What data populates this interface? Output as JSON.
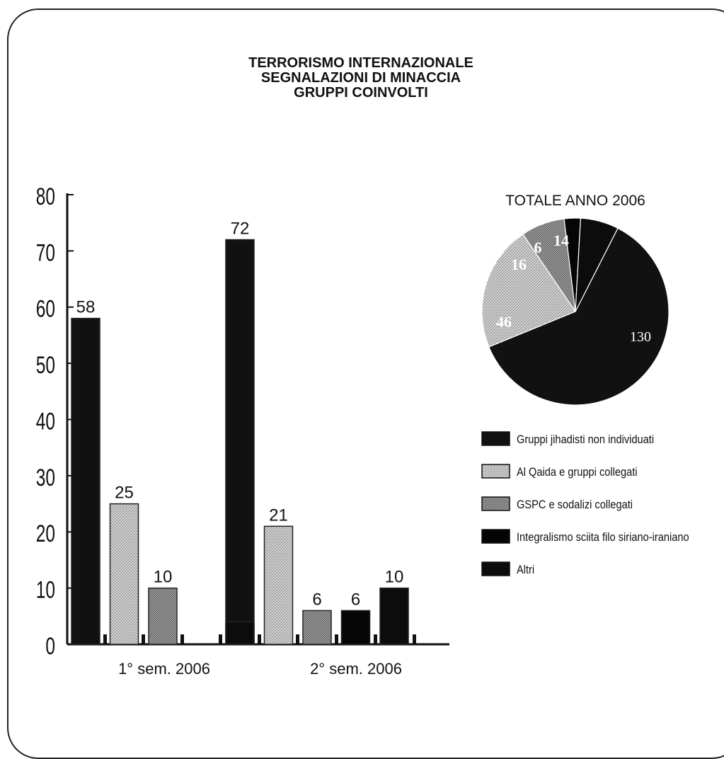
{
  "title_lines": [
    "TERRORISMO INTERNAZIONALE",
    "SEGNALAZIONI DI MINACCIA",
    "GRUPPI COINVOLTI"
  ],
  "colors": {
    "jihadisti": "#111111",
    "alqaida": "#c4c4c4",
    "gspc": "#8e8e8e",
    "sciita": "#050505",
    "altri": "#0c0c0c",
    "axis": "#111111",
    "slice_label_light": "#ffffff",
    "slice_label_dark": "#ffffff"
  },
  "chart_data": [
    {
      "type": "bar",
      "categories": [
        "1° sem. 2006",
        "2° sem. 2006"
      ],
      "series": [
        {
          "name": "Gruppi jihadisti  non individuati",
          "key": "jihadisti",
          "values": [
            58,
            72
          ]
        },
        {
          "name": "Al Qaida e gruppi collegati",
          "key": "alqaida",
          "values": [
            25,
            21
          ]
        },
        {
          "name": "GSPC e sodalizi collegati",
          "key": "gspc",
          "values": [
            10,
            6
          ]
        },
        {
          "name": "Integralismo sciita filo siriano-iraniano",
          "key": "sciita",
          "values": [
            0,
            6
          ]
        },
        {
          "name": "Altri",
          "key": "altri",
          "values": [
            4,
            10
          ]
        }
      ],
      "ylim": [
        0,
        80
      ],
      "yticks": [
        "0",
        "10",
        "20",
        "30",
        "40",
        "50",
        "60",
        "70",
        "80"
      ],
      "grid": false
    },
    {
      "type": "pie",
      "title": "TOTALE ANNO 2006",
      "slices": [
        {
          "label": "130",
          "key": "jihadisti",
          "value": 130
        },
        {
          "label": "46",
          "key": "alqaida",
          "value": 46
        },
        {
          "label": "16",
          "key": "gspc",
          "value": 16
        },
        {
          "label": "6",
          "key": "sciita",
          "value": 6
        },
        {
          "label": "14",
          "key": "altri",
          "value": 14
        }
      ]
    }
  ],
  "legend": {
    "placement": "right",
    "items": [
      {
        "label": "Gruppi jihadisti  non individuati",
        "key": "jihadisti"
      },
      {
        "label": "Al Qaida e gruppi collegati",
        "key": "alqaida"
      },
      {
        "label": "GSPC e sodalizi collegati",
        "key": "gspc"
      },
      {
        "label": "Integralismo sciita filo siriano-iraniano",
        "key": "sciita"
      },
      {
        "label": "Altri",
        "key": "altri"
      }
    ]
  }
}
